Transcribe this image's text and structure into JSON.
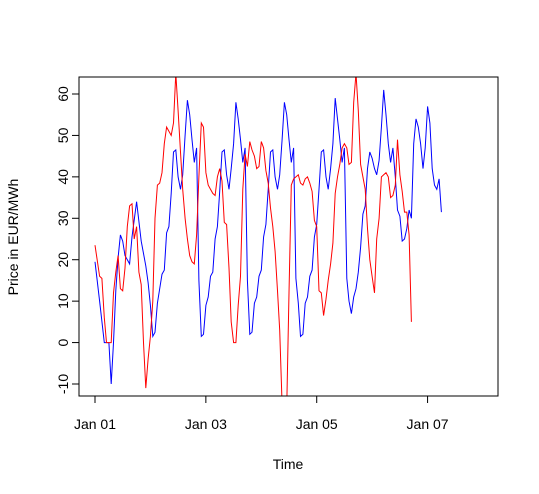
{
  "chart_data": {
    "type": "line",
    "title": "",
    "xlabel": "Time",
    "ylabel": "Price in EUR/MWh",
    "xlim": [
      0,
      7.0
    ],
    "ylim": [
      -12.5,
      65
    ],
    "x_tick_positions": [
      0,
      2,
      4,
      6
    ],
    "x_tick_labels": [
      "Jan 01",
      "Jan 03",
      "Jan 05",
      "Jan 07"
    ],
    "y_ticks": [
      -10,
      0,
      10,
      20,
      30,
      40,
      50,
      60
    ],
    "grid": false,
    "legend": "none",
    "series": [
      {
        "color": "#0000ff",
        "points": [
          [
            0.0,
            19.5
          ],
          [
            0.083,
            10.0
          ],
          [
            0.167,
            0.0
          ],
          [
            0.25,
            0.0
          ],
          [
            0.292,
            -10.0
          ],
          [
            0.333,
            0.0
          ],
          [
            0.375,
            12.5
          ],
          [
            0.417,
            20.5
          ],
          [
            0.458,
            26.0
          ],
          [
            0.5,
            24.5
          ],
          [
            0.542,
            21.0
          ],
          [
            0.625,
            19.0
          ],
          [
            0.667,
            25.5
          ],
          [
            0.75,
            34.0
          ],
          [
            0.833,
            24.5
          ],
          [
            0.917,
            18.5
          ],
          [
            0.958,
            14.5
          ],
          [
            1.0,
            9.0
          ],
          [
            1.042,
            1.5
          ],
          [
            1.083,
            2.5
          ],
          [
            1.125,
            9.5
          ],
          [
            1.208,
            16.5
          ],
          [
            1.25,
            17.5
          ],
          [
            1.292,
            26.5
          ],
          [
            1.333,
            28.0
          ],
          [
            1.375,
            36.0
          ],
          [
            1.417,
            46.0
          ],
          [
            1.458,
            46.5
          ],
          [
            1.5,
            40.0
          ],
          [
            1.542,
            37.0
          ],
          [
            1.583,
            40.5
          ],
          [
            1.625,
            50.0
          ],
          [
            1.667,
            58.5
          ],
          [
            1.708,
            55.0
          ],
          [
            1.75,
            49.0
          ],
          [
            1.792,
            43.5
          ],
          [
            1.833,
            47.0
          ],
          [
            1.875,
            15.0
          ],
          [
            1.917,
            1.5
          ],
          [
            1.958,
            2.0
          ],
          [
            2.0,
            9.0
          ],
          [
            2.042,
            11.0
          ],
          [
            2.083,
            16.0
          ],
          [
            2.125,
            17.0
          ],
          [
            2.167,
            25.0
          ],
          [
            2.208,
            28.0
          ],
          [
            2.25,
            36.5
          ],
          [
            2.292,
            46.0
          ],
          [
            2.333,
            46.5
          ],
          [
            2.375,
            40.5
          ],
          [
            2.417,
            37.0
          ],
          [
            2.458,
            42.0
          ],
          [
            2.5,
            48.0
          ],
          [
            2.542,
            58.0
          ],
          [
            2.583,
            54.0
          ],
          [
            2.625,
            49.0
          ],
          [
            2.667,
            43.5
          ],
          [
            2.708,
            47.0
          ],
          [
            2.75,
            15.0
          ],
          [
            2.792,
            2.0
          ],
          [
            2.833,
            2.5
          ],
          [
            2.875,
            9.5
          ],
          [
            2.917,
            11.0
          ],
          [
            2.958,
            16.0
          ],
          [
            3.0,
            17.5
          ],
          [
            3.042,
            25.5
          ],
          [
            3.083,
            28.5
          ],
          [
            3.125,
            37.0
          ],
          [
            3.167,
            46.0
          ],
          [
            3.208,
            46.5
          ],
          [
            3.25,
            40.0
          ],
          [
            3.292,
            37.0
          ],
          [
            3.333,
            40.5
          ],
          [
            3.375,
            49.0
          ],
          [
            3.417,
            58.0
          ],
          [
            3.458,
            55.0
          ],
          [
            3.5,
            49.0
          ],
          [
            3.542,
            43.5
          ],
          [
            3.583,
            47.0
          ],
          [
            3.625,
            15.5
          ],
          [
            3.667,
            9.5
          ],
          [
            3.708,
            1.5
          ],
          [
            3.75,
            2.0
          ],
          [
            3.792,
            9.5
          ],
          [
            3.833,
            11.0
          ],
          [
            3.875,
            16.0
          ],
          [
            3.917,
            17.5
          ],
          [
            3.958,
            25.5
          ],
          [
            4.0,
            28.5
          ],
          [
            4.042,
            37.0
          ],
          [
            4.083,
            46.0
          ],
          [
            4.125,
            46.5
          ],
          [
            4.167,
            40.0
          ],
          [
            4.208,
            37.0
          ],
          [
            4.25,
            42.0
          ],
          [
            4.292,
            48.0
          ],
          [
            4.333,
            59.0
          ],
          [
            4.375,
            54.0
          ],
          [
            4.417,
            49.0
          ],
          [
            4.458,
            43.5
          ],
          [
            4.5,
            47.0
          ],
          [
            4.542,
            15.5
          ],
          [
            4.583,
            10.0
          ],
          [
            4.625,
            7.0
          ],
          [
            4.667,
            11.0
          ],
          [
            4.708,
            13.0
          ],
          [
            4.75,
            17.0
          ],
          [
            4.792,
            23.0
          ],
          [
            4.833,
            31.0
          ],
          [
            4.875,
            33.0
          ],
          [
            4.917,
            42.0
          ],
          [
            4.958,
            46.0
          ],
          [
            5.0,
            44.5
          ],
          [
            5.042,
            42.0
          ],
          [
            5.083,
            40.5
          ],
          [
            5.125,
            44.0
          ],
          [
            5.167,
            52.0
          ],
          [
            5.208,
            61.0
          ],
          [
            5.25,
            55.0
          ],
          [
            5.292,
            48.0
          ],
          [
            5.333,
            43.5
          ],
          [
            5.375,
            47.0
          ],
          [
            5.417,
            40.0
          ],
          [
            5.458,
            32.0
          ],
          [
            5.5,
            30.5
          ],
          [
            5.542,
            24.5
          ],
          [
            5.583,
            25.0
          ],
          [
            5.625,
            27.5
          ],
          [
            5.667,
            32.0
          ],
          [
            5.708,
            30.0
          ],
          [
            5.75,
            48.0
          ],
          [
            5.792,
            54.0
          ],
          [
            5.833,
            52.0
          ],
          [
            5.875,
            48.0
          ],
          [
            5.917,
            42.0
          ],
          [
            5.958,
            47.0
          ],
          [
            6.0,
            57.0
          ],
          [
            6.042,
            53.0
          ],
          [
            6.083,
            42.0
          ],
          [
            6.125,
            38.0
          ],
          [
            6.167,
            37.0
          ],
          [
            6.208,
            39.5
          ],
          [
            6.25,
            31.5
          ]
        ]
      },
      {
        "color": "#ff0000",
        "points": [
          [
            0.0,
            23.5
          ],
          [
            0.083,
            16.0
          ],
          [
            0.125,
            15.5
          ],
          [
            0.167,
            6.0
          ],
          [
            0.208,
            0.0
          ],
          [
            0.25,
            0.0
          ],
          [
            0.292,
            0.0
          ],
          [
            0.333,
            12.0
          ],
          [
            0.375,
            17.0
          ],
          [
            0.417,
            21.0
          ],
          [
            0.458,
            13.0
          ],
          [
            0.5,
            12.5
          ],
          [
            0.542,
            18.0
          ],
          [
            0.583,
            28.0
          ],
          [
            0.625,
            33.0
          ],
          [
            0.667,
            33.5
          ],
          [
            0.708,
            25.0
          ],
          [
            0.75,
            28.0
          ],
          [
            0.792,
            17.0
          ],
          [
            0.833,
            14.0
          ],
          [
            0.875,
            0.0
          ],
          [
            0.917,
            -11.0
          ],
          [
            0.958,
            -4.0
          ],
          [
            1.0,
            1.5
          ],
          [
            1.042,
            10.0
          ],
          [
            1.083,
            30.0
          ],
          [
            1.125,
            38.0
          ],
          [
            1.167,
            38.5
          ],
          [
            1.208,
            41.0
          ],
          [
            1.25,
            48.0
          ],
          [
            1.292,
            52.0
          ],
          [
            1.333,
            51.0
          ],
          [
            1.375,
            50.0
          ],
          [
            1.417,
            53.0
          ],
          [
            1.458,
            65.0
          ],
          [
            1.5,
            56.0
          ],
          [
            1.542,
            46.0
          ],
          [
            1.583,
            37.0
          ],
          [
            1.625,
            30.0
          ],
          [
            1.667,
            25.0
          ],
          [
            1.708,
            21.0
          ],
          [
            1.75,
            19.5
          ],
          [
            1.792,
            19.0
          ],
          [
            1.833,
            26.0
          ],
          [
            1.875,
            40.0
          ],
          [
            1.917,
            53.0
          ],
          [
            1.958,
            52.0
          ],
          [
            2.0,
            41.0
          ],
          [
            2.042,
            38.0
          ],
          [
            2.083,
            37.0
          ],
          [
            2.125,
            36.0
          ],
          [
            2.167,
            35.5
          ],
          [
            2.208,
            40.0
          ],
          [
            2.25,
            42.0
          ],
          [
            2.292,
            39.0
          ],
          [
            2.333,
            29.0
          ],
          [
            2.375,
            28.5
          ],
          [
            2.417,
            18.0
          ],
          [
            2.458,
            5.0
          ],
          [
            2.5,
            0.0
          ],
          [
            2.542,
            0.0
          ],
          [
            2.583,
            9.0
          ],
          [
            2.625,
            16.0
          ],
          [
            2.667,
            37.0
          ],
          [
            2.708,
            45.5
          ],
          [
            2.75,
            42.5
          ],
          [
            2.792,
            48.5
          ],
          [
            2.833,
            46.5
          ],
          [
            2.875,
            45.0
          ],
          [
            2.917,
            42.0
          ],
          [
            2.958,
            42.5
          ],
          [
            3.0,
            48.5
          ],
          [
            3.042,
            47.0
          ],
          [
            3.083,
            41.5
          ],
          [
            3.125,
            38.5
          ],
          [
            3.167,
            32.5
          ],
          [
            3.208,
            28.0
          ],
          [
            3.25,
            22.0
          ],
          [
            3.292,
            12.5
          ],
          [
            3.333,
            3.0
          ],
          [
            3.375,
            -15.0
          ],
          [
            3.417,
            -13.0
          ],
          [
            3.458,
            -16.0
          ],
          [
            3.5,
            12.0
          ],
          [
            3.542,
            38.0
          ],
          [
            3.583,
            39.5
          ],
          [
            3.625,
            40.0
          ],
          [
            3.667,
            40.5
          ],
          [
            3.708,
            38.5
          ],
          [
            3.75,
            38.0
          ],
          [
            3.792,
            39.5
          ],
          [
            3.833,
            40.0
          ],
          [
            3.875,
            38.5
          ],
          [
            3.917,
            36.5
          ],
          [
            3.958,
            29.5
          ],
          [
            4.0,
            28.0
          ],
          [
            4.042,
            12.5
          ],
          [
            4.083,
            12.0
          ],
          [
            4.125,
            6.5
          ],
          [
            4.167,
            10.5
          ],
          [
            4.208,
            15.0
          ],
          [
            4.25,
            19.0
          ],
          [
            4.292,
            24.0
          ],
          [
            4.333,
            36.0
          ],
          [
            4.375,
            40.0
          ],
          [
            4.417,
            43.0
          ],
          [
            4.458,
            47.0
          ],
          [
            4.5,
            48.0
          ],
          [
            4.542,
            47.0
          ],
          [
            4.583,
            43.0
          ],
          [
            4.625,
            43.5
          ],
          [
            4.667,
            58.0
          ],
          [
            4.708,
            65.0
          ],
          [
            4.75,
            56.0
          ],
          [
            4.792,
            43.0
          ],
          [
            4.833,
            40.0
          ],
          [
            4.875,
            37.0
          ],
          [
            4.917,
            27.5
          ],
          [
            4.958,
            20.0
          ],
          [
            5.0,
            16.0
          ],
          [
            5.042,
            12.0
          ],
          [
            5.083,
            25.0
          ],
          [
            5.125,
            30.0
          ],
          [
            5.167,
            40.0
          ],
          [
            5.208,
            40.5
          ],
          [
            5.25,
            41.0
          ],
          [
            5.292,
            40.0
          ],
          [
            5.333,
            35.0
          ],
          [
            5.375,
            35.5
          ],
          [
            5.417,
            38.0
          ],
          [
            5.458,
            49.0
          ],
          [
            5.5,
            40.5
          ],
          [
            5.542,
            36.5
          ],
          [
            5.583,
            31.5
          ],
          [
            5.625,
            31.5
          ],
          [
            5.667,
            26.0
          ],
          [
            5.708,
            5.0
          ]
        ]
      }
    ]
  }
}
